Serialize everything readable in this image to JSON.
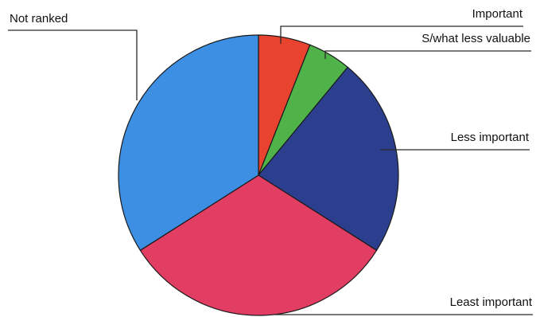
{
  "chart_data": {
    "type": "pie",
    "title": "",
    "start_angle_deg": 0,
    "direction": "clockwise",
    "slices": [
      {
        "label": "Important",
        "value": 6,
        "color": "#e8432f"
      },
      {
        "label": "S/what less valuable",
        "value": 5,
        "color": "#4fb34a"
      },
      {
        "label": "Less important",
        "value": 23,
        "color": "#2c3f8f"
      },
      {
        "label": "Least important",
        "value": 32,
        "color": "#e23d62"
      },
      {
        "label": "Not ranked",
        "value": 34,
        "color": "#3d8fe3"
      }
    ],
    "legend": "none",
    "label_style": "callout lines"
  }
}
